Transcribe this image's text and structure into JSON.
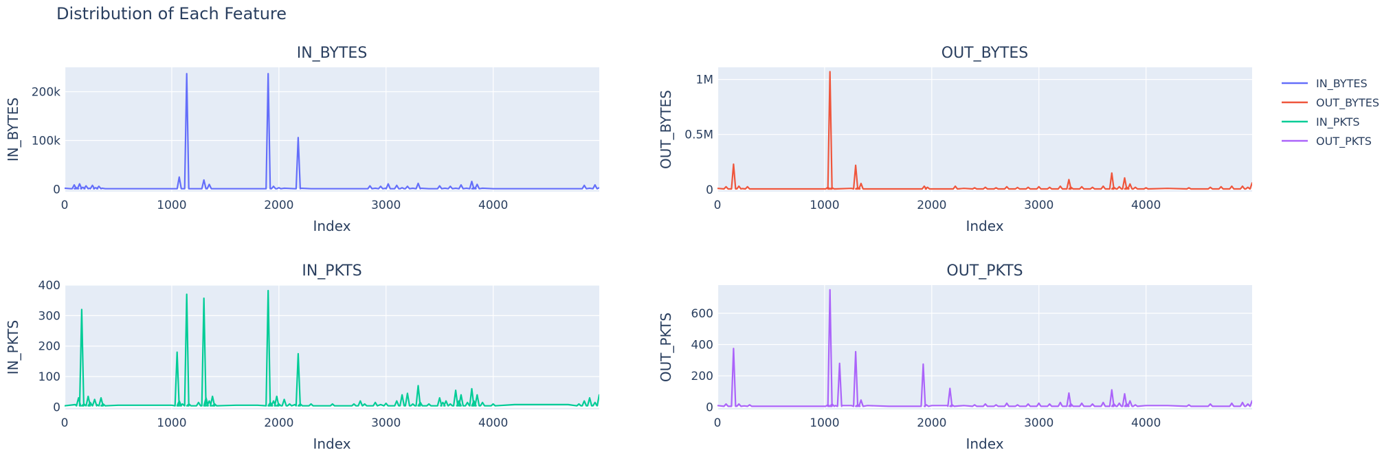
{
  "title": "Distribution of Each Feature",
  "legend": {
    "position": "top-right",
    "items": [
      {
        "name": "IN_BYTES",
        "color": "#636efa"
      },
      {
        "name": "OUT_BYTES",
        "color": "#ef553b"
      },
      {
        "name": "IN_PKTS",
        "color": "#00cc96"
      },
      {
        "name": "OUT_PKTS",
        "color": "#ab63fa"
      }
    ]
  },
  "chart_data": [
    {
      "type": "line",
      "title": "IN_BYTES",
      "xlabel": "Index",
      "ylabel": "IN_BYTES",
      "color": "#636efa",
      "xlim": [
        0,
        4990
      ],
      "ylim": [
        -5000,
        250000
      ],
      "xticks": [
        0,
        1000,
        2000,
        3000,
        4000
      ],
      "xtick_labels": [
        "0",
        "1000",
        "2000",
        "3000",
        "4000"
      ],
      "yticks": [
        0,
        100000,
        200000
      ],
      "ytick_labels": [
        "0",
        "100k",
        "200k"
      ],
      "grid": true,
      "baseline": 1000,
      "x": [
        0,
        60,
        90,
        110,
        140,
        170,
        200,
        230,
        260,
        290,
        320,
        350,
        380,
        600,
        900,
        1050,
        1070,
        1100,
        1140,
        1160,
        1250,
        1300,
        1320,
        1350,
        1400,
        1450,
        1600,
        1800,
        1900,
        1920,
        1950,
        2000,
        2050,
        2150,
        2180,
        2200,
        2300,
        2400,
        2600,
        2800,
        2850,
        2900,
        2950,
        3000,
        3020,
        3050,
        3100,
        3150,
        3200,
        3250,
        3300,
        3320,
        3400,
        3500,
        3550,
        3600,
        3650,
        3700,
        3750,
        3800,
        3820,
        3850,
        3900,
        4000,
        4200,
        4500,
        4700,
        4800,
        4850,
        4900,
        4950,
        4990
      ],
      "values": [
        2000,
        1000,
        9000,
        3000,
        11000,
        4000,
        7000,
        2000,
        8000,
        3000,
        6000,
        2000,
        1000,
        1000,
        1000,
        1000,
        25000,
        1000,
        237000,
        1000,
        1000,
        19000,
        2000,
        10000,
        1000,
        1000,
        1000,
        1000,
        237000,
        2000,
        6000,
        3000,
        2000,
        1000,
        106000,
        2000,
        1000,
        1000,
        1000,
        1000,
        7000,
        2000,
        6000,
        2000,
        11000,
        1000,
        8000,
        3000,
        6000,
        2000,
        12000,
        2000,
        1000,
        7000,
        2000,
        6000,
        2000,
        9000,
        2000,
        16000,
        3000,
        10000,
        2000,
        1000,
        1000,
        1000,
        1000,
        1000,
        8000,
        2000,
        9000,
        3000
      ]
    },
    {
      "type": "line",
      "title": "OUT_BYTES",
      "xlabel": "Index",
      "ylabel": "OUT_BYTES",
      "color": "#ef553b",
      "xlim": [
        0,
        4990
      ],
      "ylim": [
        -20000,
        1110000
      ],
      "xticks": [
        0,
        1000,
        2000,
        3000,
        4000
      ],
      "xtick_labels": [
        "0",
        "1000",
        "2000",
        "3000",
        "4000"
      ],
      "yticks": [
        0,
        500000,
        1000000
      ],
      "ytick_labels": [
        "0",
        "0.5M",
        "1M"
      ],
      "grid": true,
      "baseline": 5000,
      "x": [
        0,
        80,
        100,
        150,
        170,
        200,
        230,
        280,
        300,
        400,
        700,
        1000,
        1030,
        1050,
        1070,
        1100,
        1250,
        1290,
        1310,
        1340,
        1400,
        1900,
        1930,
        1960,
        2000,
        2200,
        2220,
        2300,
        2400,
        2500,
        2600,
        2700,
        2800,
        2900,
        3000,
        3100,
        3200,
        3280,
        3300,
        3400,
        3500,
        3600,
        3680,
        3700,
        3750,
        3800,
        3820,
        3850,
        3900,
        4000,
        4200,
        4400,
        4600,
        4700,
        4800,
        4900,
        4950,
        4990
      ],
      "values": [
        10000,
        25000,
        5000,
        230000,
        10000,
        30000,
        8000,
        25000,
        5000,
        5000,
        5000,
        5000,
        20000,
        1070000,
        15000,
        5000,
        10000,
        220000,
        15000,
        55000,
        5000,
        5000,
        30000,
        20000,
        5000,
        5000,
        30000,
        10000,
        15000,
        20000,
        15000,
        25000,
        18000,
        20000,
        25000,
        20000,
        30000,
        90000,
        20000,
        25000,
        20000,
        30000,
        150000,
        20000,
        25000,
        105000,
        20000,
        50000,
        20000,
        15000,
        10000,
        15000,
        20000,
        25000,
        30000,
        30000,
        20000,
        60000
      ]
    },
    {
      "type": "line",
      "title": "IN_PKTS",
      "xlabel": "Index",
      "ylabel": "IN_PKTS",
      "color": "#00cc96",
      "xlim": [
        0,
        4990
      ],
      "ylim": [
        -8,
        400
      ],
      "xticks": [
        0,
        1000,
        2000,
        3000,
        4000
      ],
      "xtick_labels": [
        "0",
        "1000",
        "2000",
        "3000",
        "4000"
      ],
      "yticks": [
        0,
        100,
        200,
        300,
        400
      ],
      "ytick_labels": [
        "0",
        "100",
        "200",
        "300",
        "400"
      ],
      "grid": true,
      "baseline": 4,
      "x": [
        0,
        100,
        130,
        160,
        180,
        220,
        240,
        280,
        300,
        340,
        360,
        500,
        800,
        1000,
        1050,
        1070,
        1100,
        1140,
        1160,
        1250,
        1300,
        1320,
        1350,
        1380,
        1400,
        1600,
        1800,
        1900,
        1920,
        1950,
        1980,
        2000,
        2050,
        2100,
        2150,
        2180,
        2200,
        2300,
        2500,
        2700,
        2760,
        2800,
        2900,
        2950,
        3000,
        3100,
        3150,
        3200,
        3250,
        3300,
        3320,
        3400,
        3500,
        3530,
        3560,
        3600,
        3650,
        3680,
        3700,
        3760,
        3800,
        3820,
        3850,
        3900,
        4000,
        4200,
        4500,
        4700,
        4800,
        4850,
        4900,
        4950,
        4990
      ],
      "values": [
        4,
        8,
        30,
        320,
        10,
        35,
        15,
        25,
        8,
        30,
        10,
        6,
        6,
        6,
        180,
        20,
        10,
        370,
        10,
        15,
        357,
        30,
        20,
        35,
        10,
        6,
        6,
        382,
        15,
        20,
        35,
        10,
        25,
        10,
        8,
        175,
        10,
        10,
        10,
        10,
        20,
        10,
        15,
        8,
        12,
        20,
        40,
        45,
        10,
        70,
        15,
        10,
        30,
        15,
        20,
        10,
        55,
        20,
        40,
        15,
        60,
        20,
        40,
        15,
        10,
        8,
        8,
        8,
        10,
        20,
        30,
        15,
        40
      ]
    },
    {
      "type": "line",
      "title": "OUT_PKTS",
      "xlabel": "Index",
      "ylabel": "OUT_PKTS",
      "color": "#ab63fa",
      "xlim": [
        0,
        4990
      ],
      "ylim": [
        -15,
        780
      ],
      "xticks": [
        0,
        1000,
        2000,
        3000,
        4000
      ],
      "xtick_labels": [
        "0",
        "1000",
        "2000",
        "3000",
        "4000"
      ],
      "yticks": [
        0,
        200,
        400,
        600
      ],
      "ytick_labels": [
        "0",
        "200",
        "400",
        "600"
      ],
      "grid": true,
      "baseline": 5,
      "x": [
        0,
        80,
        100,
        150,
        170,
        200,
        250,
        300,
        400,
        700,
        1000,
        1030,
        1050,
        1070,
        1100,
        1140,
        1160,
        1250,
        1290,
        1310,
        1340,
        1400,
        1600,
        1800,
        1900,
        1920,
        1950,
        2000,
        2150,
        2170,
        2190,
        2300,
        2400,
        2500,
        2600,
        2700,
        2800,
        2900,
        3000,
        3100,
        3200,
        3280,
        3300,
        3400,
        3500,
        3600,
        3680,
        3700,
        3750,
        3800,
        3820,
        3850,
        3900,
        4000,
        4200,
        4400,
        4600,
        4800,
        4900,
        4950,
        4990
      ],
      "values": [
        10,
        20,
        5,
        375,
        10,
        20,
        8,
        15,
        5,
        5,
        5,
        15,
        750,
        20,
        10,
        280,
        10,
        10,
        355,
        15,
        45,
        10,
        5,
        5,
        5,
        275,
        15,
        10,
        10,
        120,
        15,
        10,
        15,
        20,
        15,
        25,
        15,
        20,
        25,
        20,
        30,
        90,
        20,
        25,
        20,
        30,
        110,
        20,
        25,
        85,
        20,
        40,
        15,
        10,
        10,
        15,
        20,
        25,
        30,
        20,
        40
      ]
    }
  ]
}
